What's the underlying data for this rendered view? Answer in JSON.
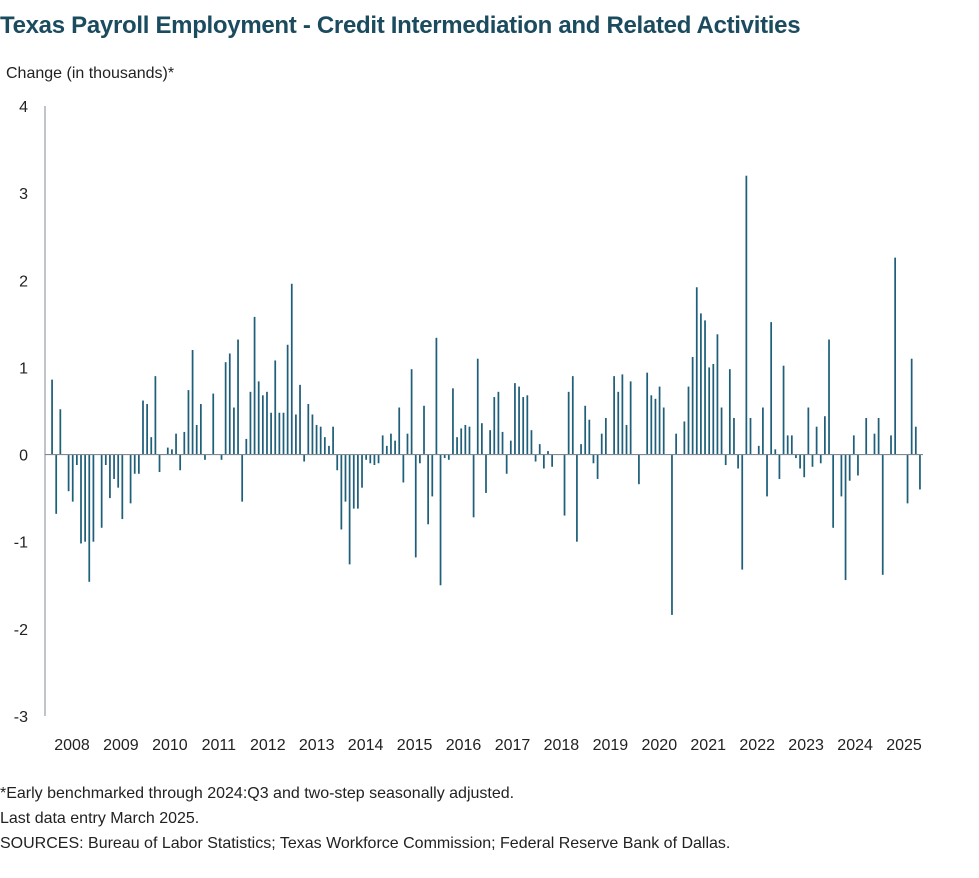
{
  "title": "Texas Payroll Employment - Credit Intermediation and Related Activities",
  "notes": [
    "*Early benchmarked through 2024:Q3 and two-step seasonally adjusted.",
    "Last data entry March 2025.",
    "SOURCES: Bureau of Labor Statistics; Texas Workforce Commission; Federal Reserve Bank of Dallas."
  ],
  "colors": {
    "bar": "#1f5f7a",
    "axis": "#7f8a94",
    "title": "#1b4b5f"
  },
  "chart_data": {
    "type": "bar",
    "ylabel": "Change (in thousands)*",
    "ylim": [
      -3,
      4
    ],
    "yticks": [
      4,
      3,
      2,
      1,
      0,
      -1,
      -2,
      -3
    ],
    "grid": false,
    "x_tick_labels": [
      "2008",
      "2009",
      "2010",
      "2011",
      "2012",
      "2013",
      "2014",
      "2015",
      "2016",
      "2017",
      "2018",
      "2019",
      "2020",
      "2021",
      "2022",
      "2023",
      "2024",
      "2025"
    ],
    "x_start": "2008-01",
    "x_end": "2025-03",
    "series": [
      {
        "values": [
          0.86,
          -0.68,
          0.52,
          0.0,
          -0.42,
          -0.54,
          -0.12,
          -1.02,
          -1.0,
          -1.46,
          -1.0,
          0.0,
          -0.84,
          -0.12,
          -0.5,
          -0.28,
          -0.38,
          -0.74,
          0.0,
          -0.56,
          -0.22,
          -0.22,
          0.62,
          0.58,
          0.2,
          0.9,
          -0.2,
          0.0,
          0.08,
          0.06,
          0.24,
          -0.18,
          0.26,
          0.74,
          1.2,
          0.34,
          0.58,
          -0.06,
          0.0,
          0.7,
          0.0,
          -0.06,
          1.06,
          1.16,
          0.54,
          1.32,
          -0.54,
          0.18,
          0.72,
          1.58,
          0.84,
          0.68,
          0.72,
          0.48,
          1.08,
          0.48,
          0.48,
          1.26,
          1.96,
          0.46,
          0.8,
          -0.08,
          0.58,
          0.46,
          0.34,
          0.32,
          0.2,
          0.1,
          0.32,
          -0.18,
          -0.86,
          -0.54,
          -1.26,
          -0.62,
          -0.62,
          -0.38,
          -0.06,
          -0.1,
          -0.12,
          -0.1,
          0.22,
          0.1,
          0.24,
          0.16,
          0.54,
          -0.32,
          0.24,
          0.98,
          -1.18,
          -0.1,
          0.56,
          -0.8,
          -0.48,
          1.34,
          -1.5,
          -0.04,
          -0.06,
          0.76,
          0.2,
          0.3,
          0.34,
          0.32,
          -0.72,
          1.1,
          0.36,
          -0.44,
          0.28,
          0.66,
          0.72,
          0.26,
          -0.22,
          0.16,
          0.82,
          0.78,
          0.66,
          0.68,
          0.28,
          -0.08,
          0.12,
          -0.16,
          0.04,
          -0.14,
          0.0,
          0.0,
          -0.7,
          0.72,
          0.9,
          -1.0,
          0.12,
          0.56,
          0.4,
          -0.1,
          -0.28,
          0.24,
          0.42,
          0.0,
          0.9,
          0.72,
          0.92,
          0.34,
          0.84,
          0.0,
          -0.34,
          0.0,
          0.94,
          0.68,
          0.64,
          0.78,
          0.54,
          0.0,
          -1.84,
          0.24,
          0.0,
          0.38,
          0.78,
          1.12,
          1.92,
          1.62,
          1.54,
          1.0,
          1.04,
          1.38,
          0.54,
          -0.12,
          0.98,
          0.42,
          -0.16,
          -1.32,
          3.2,
          0.42,
          0.0,
          0.1,
          0.54,
          -0.48,
          1.52,
          0.06,
          -0.28,
          1.02,
          0.22,
          0.22,
          -0.04,
          -0.16,
          -0.26,
          0.54,
          -0.14,
          0.32,
          -0.1,
          0.44,
          1.32,
          -0.84,
          0.0,
          -0.48,
          -1.44,
          -0.3,
          0.22,
          -0.24,
          0.0,
          0.42,
          0.0,
          0.24,
          0.42,
          -1.38,
          0.0,
          0.22,
          2.26,
          0.0,
          0.0,
          -0.56,
          1.1,
          0.32,
          -0.4
        ]
      }
    ]
  }
}
